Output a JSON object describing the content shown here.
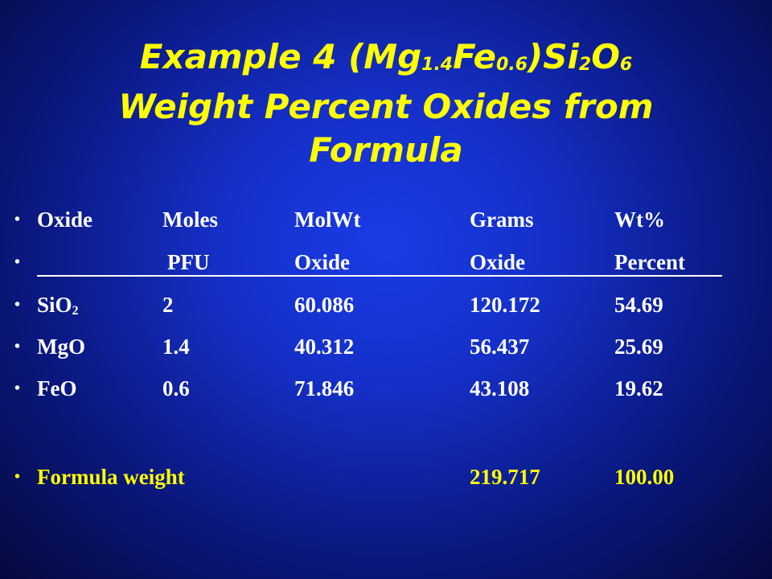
{
  "title": {
    "line1_pre": "Example 4 (Mg",
    "sub1": "1.4",
    "line1_fe": "Fe",
    "sub2": "0.6",
    "line1_si": ")Si",
    "sub3": "2",
    "line1_o": "O",
    "sub4": "6",
    "line2": "Weight Percent Oxides from",
    "line3": "Formula"
  },
  "bullet": "•",
  "header1": [
    "Oxide",
    "Moles",
    "MolWt",
    "Grams",
    "Wt%"
  ],
  "header2": [
    "",
    "PFU",
    "Oxide",
    "Oxide",
    "Percent"
  ],
  "rows": [
    {
      "oxide": "SiO",
      "oxide_sub": "2",
      "moles": "2",
      "molwt": "60.086",
      "grams": "120.172",
      "wt": "54.69"
    },
    {
      "oxide": "MgO",
      "oxide_sub": "",
      "moles": "1.4",
      "molwt": "40.312",
      "grams": "56.437",
      "wt": "25.69"
    },
    {
      "oxide": "FeO",
      "oxide_sub": "",
      "moles": "0.6",
      "molwt": "71.846",
      "grams": "43.108",
      "wt": "19.62"
    }
  ],
  "total": {
    "label": "Formula weight",
    "grams": "219.717",
    "wt": "100.00"
  }
}
